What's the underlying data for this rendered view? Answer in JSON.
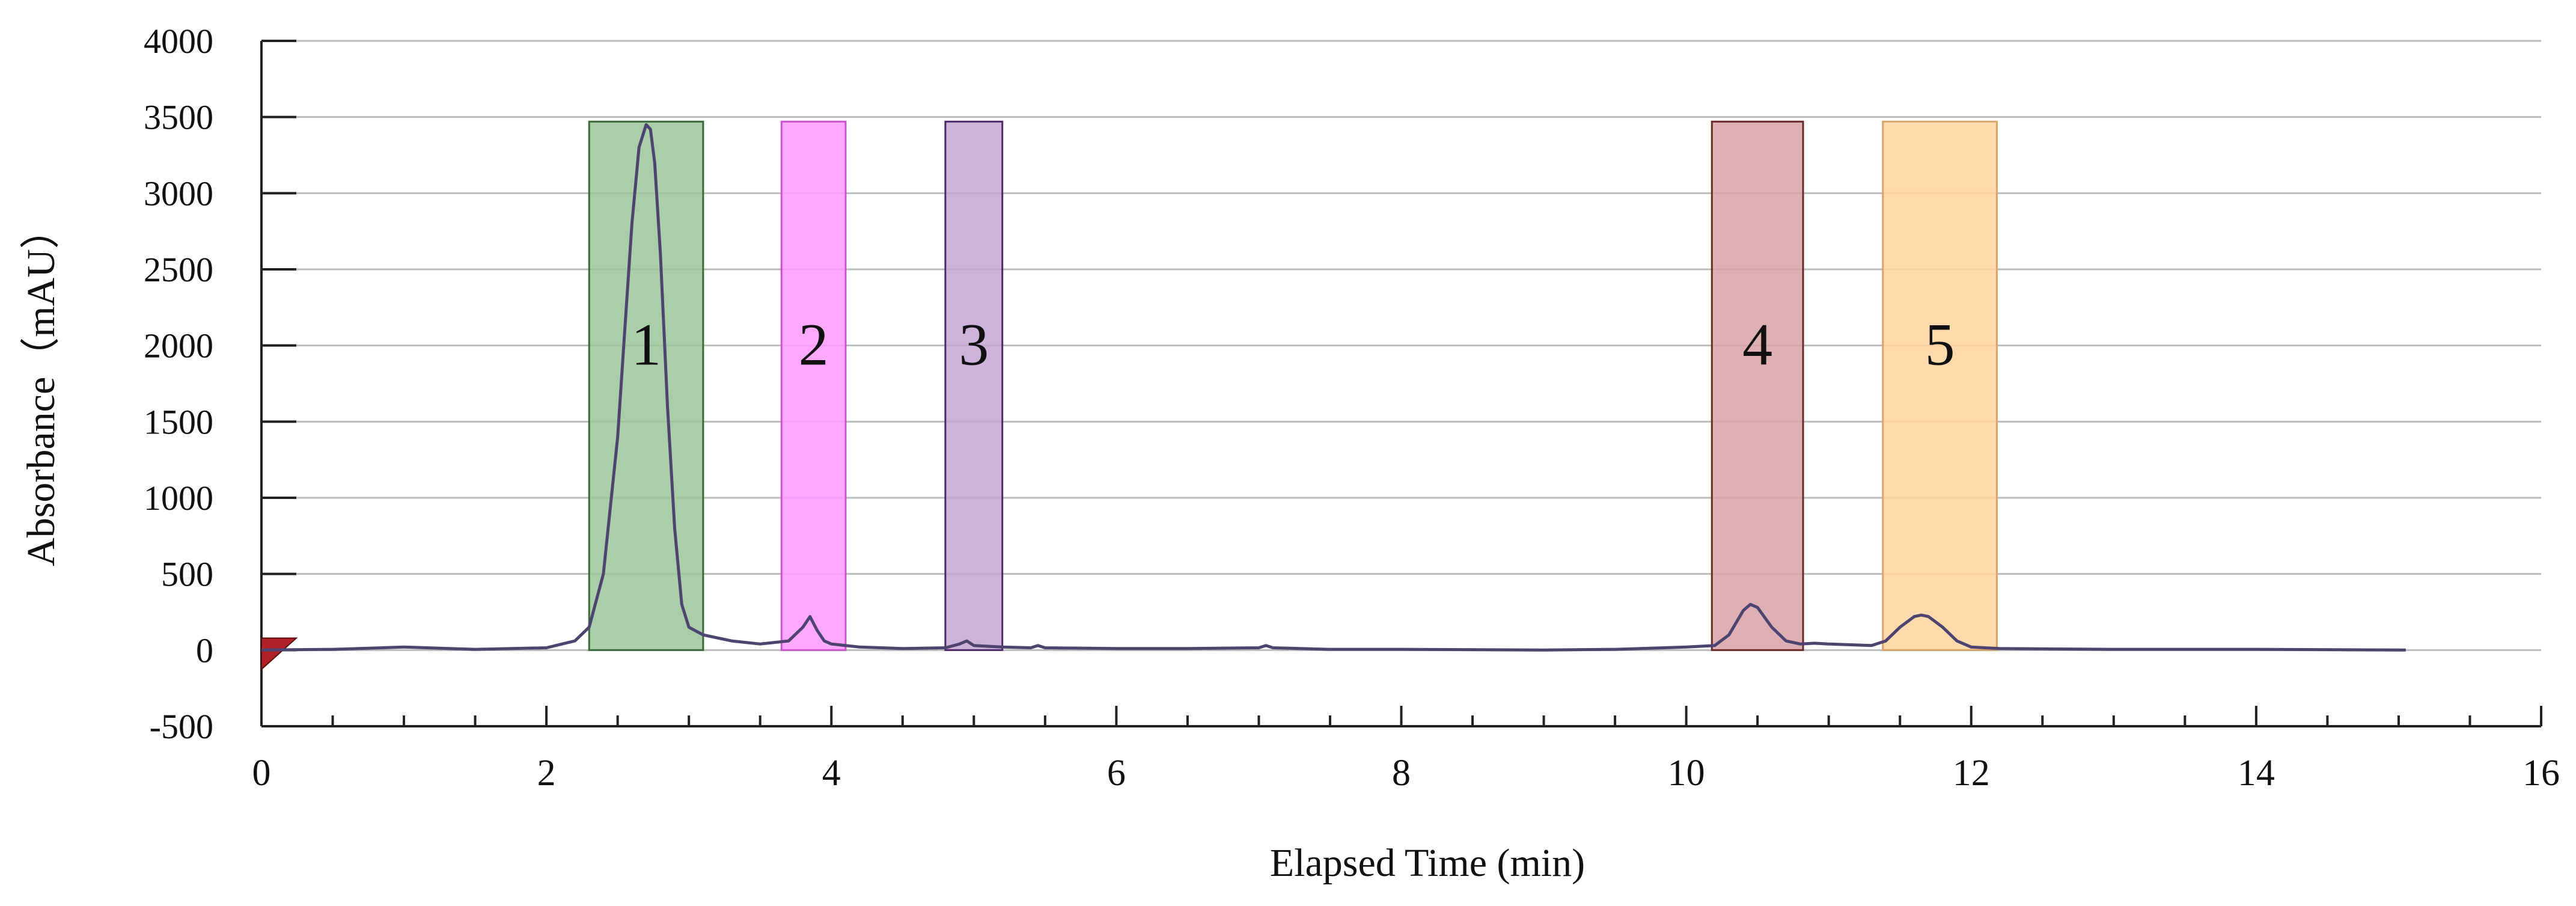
{
  "chart_data": {
    "type": "line",
    "title": "",
    "xlabel": "Elapsed Time (min)",
    "ylabel": "Absorbance（mAU）",
    "xlim": [
      0,
      16
    ],
    "ylim": [
      -500,
      4000
    ],
    "xticks": [
      0,
      2,
      4,
      6,
      8,
      10,
      12,
      14,
      16
    ],
    "yticks": [
      -500,
      0,
      500,
      1000,
      1500,
      2000,
      2500,
      3000,
      3500,
      4000
    ],
    "grid": "horizontal",
    "line_color": "#4d4470",
    "series": [
      {
        "x": [
          0,
          0.5,
          1.0,
          1.5,
          2.0,
          2.2,
          2.3,
          2.4,
          2.5,
          2.55,
          2.6,
          2.65,
          2.7,
          2.73,
          2.76,
          2.8,
          2.85,
          2.9,
          2.95,
          3.0,
          3.1,
          3.3,
          3.5,
          3.7,
          3.8,
          3.85,
          3.9,
          3.95,
          4.0,
          4.2,
          4.5,
          4.8,
          4.9,
          4.95,
          5.0,
          5.2,
          5.4,
          5.45,
          5.5,
          6.0,
          6.5,
          7.0,
          7.05,
          7.1,
          7.5,
          8.0,
          9.0,
          9.5,
          10.0,
          10.2,
          10.3,
          10.4,
          10.45,
          10.5,
          10.6,
          10.7,
          10.8,
          10.9,
          11.0,
          11.3,
          11.4,
          11.5,
          11.6,
          11.65,
          11.7,
          11.8,
          11.9,
          12.0,
          12.2,
          13.0,
          14.0,
          15.05
        ],
        "y": [
          0,
          5,
          20,
          5,
          15,
          60,
          150,
          500,
          1400,
          2100,
          2800,
          3300,
          3450,
          3420,
          3200,
          2600,
          1600,
          800,
          300,
          150,
          100,
          60,
          40,
          60,
          150,
          220,
          130,
          60,
          40,
          20,
          10,
          15,
          40,
          60,
          30,
          20,
          15,
          30,
          15,
          10,
          10,
          15,
          30,
          15,
          5,
          5,
          0,
          5,
          20,
          30,
          100,
          260,
          300,
          280,
          150,
          60,
          40,
          45,
          40,
          30,
          60,
          150,
          220,
          230,
          220,
          150,
          60,
          20,
          10,
          5,
          5,
          0
        ]
      }
    ],
    "fractions": [
      {
        "label": "1",
        "x_start": 2.3,
        "x_end": 3.1,
        "top": 3470,
        "fill": "#9bc59b",
        "stroke": "#3a6a3a"
      },
      {
        "label": "2",
        "x_start": 3.65,
        "x_end": 4.1,
        "top": 3470,
        "fill": "#ff99ff",
        "stroke": "#cc55cc"
      },
      {
        "label": "3",
        "x_start": 4.8,
        "x_end": 5.2,
        "top": 3470,
        "fill": "#c4a6d4",
        "stroke": "#4a2a6a"
      },
      {
        "label": "4",
        "x_start": 10.18,
        "x_end": 10.82,
        "top": 3470,
        "fill": "#d8a2a6",
        "stroke": "#6a2a2a"
      },
      {
        "label": "5",
        "x_start": 11.38,
        "x_end": 12.18,
        "top": 3470,
        "fill": "#ffd49e",
        "stroke": "#d8a468"
      }
    ],
    "marker_color": "#b02028"
  }
}
